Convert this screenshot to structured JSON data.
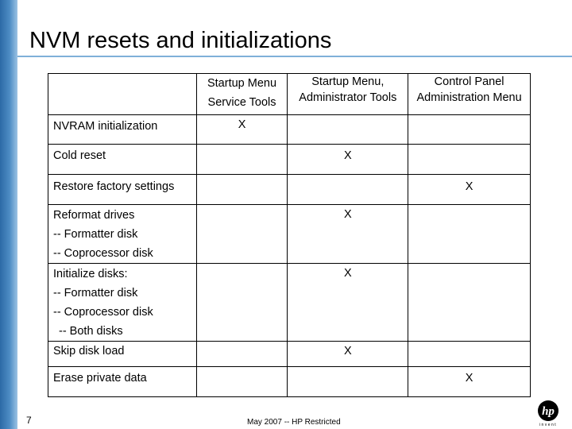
{
  "slide": {
    "title": "NVM resets and initializations",
    "page_number": "7",
    "footer": "May 2007 -- HP Restricted",
    "logo_text": "hp",
    "logo_tagline": "invent"
  },
  "table": {
    "headers": [
      "",
      [
        "Startup Menu",
        "Service Tools"
      ],
      [
        "Startup Menu,",
        "Administrator Tools"
      ],
      [
        "Control Panel",
        "Administration Menu"
      ]
    ],
    "rows": [
      {
        "label": [
          "NVRAM initialization"
        ],
        "marks": [
          "X",
          "",
          ""
        ]
      },
      {
        "label": [
          "Cold reset"
        ],
        "marks": [
          "",
          "X",
          ""
        ]
      },
      {
        "label": [
          "Restore factory settings"
        ],
        "marks": [
          "",
          "",
          "X"
        ]
      },
      {
        "label": [
          "Reformat drives",
          "-- Formatter disk",
          "-- Coprocessor disk"
        ],
        "marks": [
          "",
          "X",
          ""
        ]
      },
      {
        "label": [
          "Initialize disks:",
          "-- Formatter disk",
          "-- Coprocessor disk",
          "-- Both disks"
        ],
        "marks": [
          "",
          "X",
          ""
        ]
      },
      {
        "label": [
          "Skip disk load"
        ],
        "marks": [
          "",
          "X",
          ""
        ]
      },
      {
        "label": [
          "Erase private data"
        ],
        "marks": [
          "",
          "",
          "X"
        ]
      }
    ]
  }
}
